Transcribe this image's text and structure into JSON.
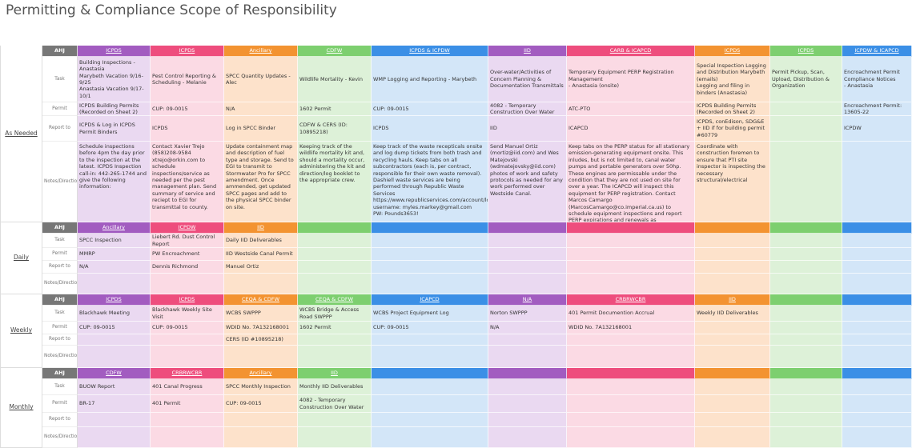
{
  "title": "Permitting & Compliance Scope of Responsibility",
  "row_labels": [
    "AHJ",
    "Task",
    "Permit",
    "Report to",
    "Notes/Direction"
  ],
  "sections": [
    {
      "label": "As Needed",
      "rows": {
        "ahj": [
          "ICPDS",
          "ICPDS",
          "Ancillary",
          "CDFW",
          "ICPDS & ICPDW",
          "IID",
          "CARB & ICAPCD",
          "ICPDS",
          "ICPDS",
          "ICPDW & ICAPCD"
        ],
        "task": [
          "Building Inspections - Anastasia\nMarybeth Vacation 9/16-9/25\nAnastasia Vacation 9/17-10/1",
          "Pest Control Reporting & Scheduling - Melanie",
          "SPCC Quantity Updates - Alec",
          "Wildlife Mortality - Kevin",
          "WMP Logging and Reporting - Marybeth",
          "Over-water/Activities of Concern Planning & Documentation Transmittals",
          "Temporary Equipment PERP Registration Management\n- Anastasia (onsite)",
          "Special Inspection Logging and Distribution Marybeth (emails)\nLogging and filing in binders (Anastasia)",
          "Permit Pickup, Scan, Upload, Distribution & Organization",
          "Encroachment Permit Compliance Notices\n- Anastasia"
        ],
        "permit": [
          "ICPDS Building Permits (Recorded on Sheet 2)",
          "CUP: 09-0015",
          "N/A",
          "1602 Permit",
          "CUP: 09-0015",
          "4082 - Temporary Construction Over Water",
          "ATC-PTO",
          "ICPDS Building Permits (Recorded on Sheet 2)",
          null,
          "Encroachment Permit: 13605-22"
        ],
        "report": [
          "ICPDS & Log in ICPDS Permit Binders",
          "ICPDS",
          "Log in SPCC Binder",
          "CDFW & CERS (ID: 10895218)",
          "ICPDS",
          "IID",
          "ICAPCD",
          "ICPDS, conEdison, SDG&E + IID if for building permit #60779",
          null,
          "ICPDW"
        ],
        "notes": [
          "Schedule inspections before 4pm the day prior to the inspection at the latest. ICPDS Inspection call-in: 442-265-1744 and give the following information:",
          "Contact Xavier Trejo (858)208-9584 xtrejo@orkin.com to schedule inspections/service as needed per the pest management plan. Send summary of service and reciept to EGI for transmittal to county.",
          "Update containment map and description of fuel type and storage. Send to EGI to transmit to Stormwater Pro for SPCC amendment. Once ammended, get updated SPCC pages and add to the physical SPCC binder on site.",
          "Keeping track of the wildlife mortality kit and, should a mortality occur, administering the kit and direction/log booklet to the appropriate crew.",
          "Keep track of the waste recepticals onsite and log dump tickets from both trash and recycling hauls. Keep tabs on all subcontractors (each is, per contract, responsible for their own waste removal). Dashiell waste services are being performed through Republic Waste Services https://www.republicservices.com/account/login\nusername: myles.markey@gmail.com\nPW: Pounds3653!",
          "Send Manuel Ortiz (mortiz@iid.com) and Wes Matejovski (wdmatejovsky@iid.com) photos of work and safety protocols as needed for any work performed over Westside Canal.",
          "Keep tabs on the PERP status for all stationary emission-generating equipment onsite. This inludes, but is not limited to, canal water pumps and portable generators over 50hp. These engines are permissable under the condition that they are not used on site for over a year. The ICAPCD will inspect this equipment for PERP registration. Contact Marcos Camargo (MarcosCamargo@co.imperial.ca.us) to schedule equipment inspections and report PERP expirations and renewals as necessary/requested.",
          "Coordinate with construction foremen to ensure that PTI site inspector is inspecting the necessary structural/electrical",
          null,
          null
        ]
      }
    },
    {
      "label": "Daily",
      "rows": {
        "ahj": [
          "Ancillary",
          "ICPDW",
          "IID",
          null,
          null,
          null,
          null,
          null,
          null,
          null
        ],
        "task": [
          "SPCC Inspection",
          "Liebert Rd. Dust Control Report",
          "Daily IID Deliverables",
          null,
          null,
          null,
          null,
          null,
          null,
          null
        ],
        "permit": [
          "MMRP",
          "PW Encroachment",
          "IID Westside Canal Permit",
          null,
          null,
          null,
          null,
          null,
          null,
          null
        ],
        "report": [
          "N/A",
          "Dennis Richmond",
          "Manuel Ortiz",
          null,
          null,
          null,
          null,
          null,
          null,
          null
        ],
        "notes": [
          null,
          null,
          null,
          null,
          null,
          null,
          null,
          null,
          null,
          null
        ]
      }
    },
    {
      "label": "Weekly",
      "rows": {
        "ahj": [
          "ICPDS",
          "ICPDS",
          "CEQA & CDFW",
          "CEQA & CDFW",
          "ICAPCD",
          "N/A",
          "CRBRWCBR",
          "IID",
          null,
          null
        ],
        "task": [
          "Blackhawk Meeting",
          "Blackhawk Weekly Site Visit",
          "WCBS SWPPP",
          "WCBS Bridge & Access Road SWPPP",
          "WCBS Project Equipment Log",
          "Norton SWPPP",
          "401 Permit Documention Accrual",
          "Weekly IID Deliverables",
          null,
          null
        ],
        "permit": [
          "CUP: 09-0015",
          "CUP: 09-0015",
          "WDID No. 7A132168001",
          "1602 Permit",
          "CUP: 09-0015",
          "N/A",
          "WDID No. 7A132168001",
          null,
          null,
          null
        ],
        "report": [
          null,
          null,
          "CERS (ID #10895218)",
          null,
          null,
          null,
          null,
          null,
          null,
          null
        ],
        "notes": [
          null,
          null,
          null,
          null,
          null,
          null,
          null,
          null,
          null,
          null
        ]
      }
    },
    {
      "label": "Monthly",
      "rows": {
        "ahj": [
          "CDFW",
          "CRBRWCBR",
          "Ancillary",
          "IID",
          null,
          null,
          null,
          null,
          null,
          null
        ],
        "task": [
          "BUOW Report",
          "401 Canal Progress",
          "SPCC Monthly Inspection",
          "Monthly IID Deliverables",
          null,
          null,
          null,
          null,
          null,
          null
        ],
        "permit": [
          "BR-17",
          "401 Permit",
          "CUP: 09-0015",
          "4082 - Temporary Construction Over Water",
          null,
          null,
          null,
          null,
          null,
          null
        ],
        "report": [
          null,
          null,
          null,
          null,
          null,
          null,
          null,
          null,
          null,
          null
        ],
        "notes": [
          null,
          null,
          null,
          null,
          null,
          null,
          null,
          null,
          null,
          null
        ]
      }
    }
  ]
}
